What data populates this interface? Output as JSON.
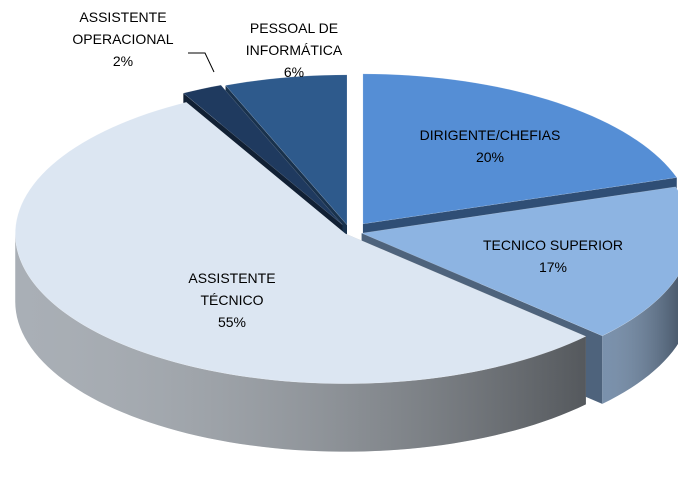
{
  "chart_data": {
    "type": "pie",
    "view": "3d",
    "categories": [
      "DIRIGENTE/CHEFIAS",
      "TECNICO SUPERIOR",
      "ASSISTENTE TÉCNICO",
      "ASSISTENTE OPERACIONAL",
      "PESSOAL DE INFORMÁTICA"
    ],
    "values": [
      20,
      17,
      55,
      2,
      6
    ],
    "value_labels": [
      "20%",
      "17%",
      "55%",
      "2%",
      "6%"
    ],
    "colors": [
      "#558ed5",
      "#8db4e2",
      "#dce6f2",
      "#1f3a5f",
      "#2e5a8c"
    ]
  }
}
